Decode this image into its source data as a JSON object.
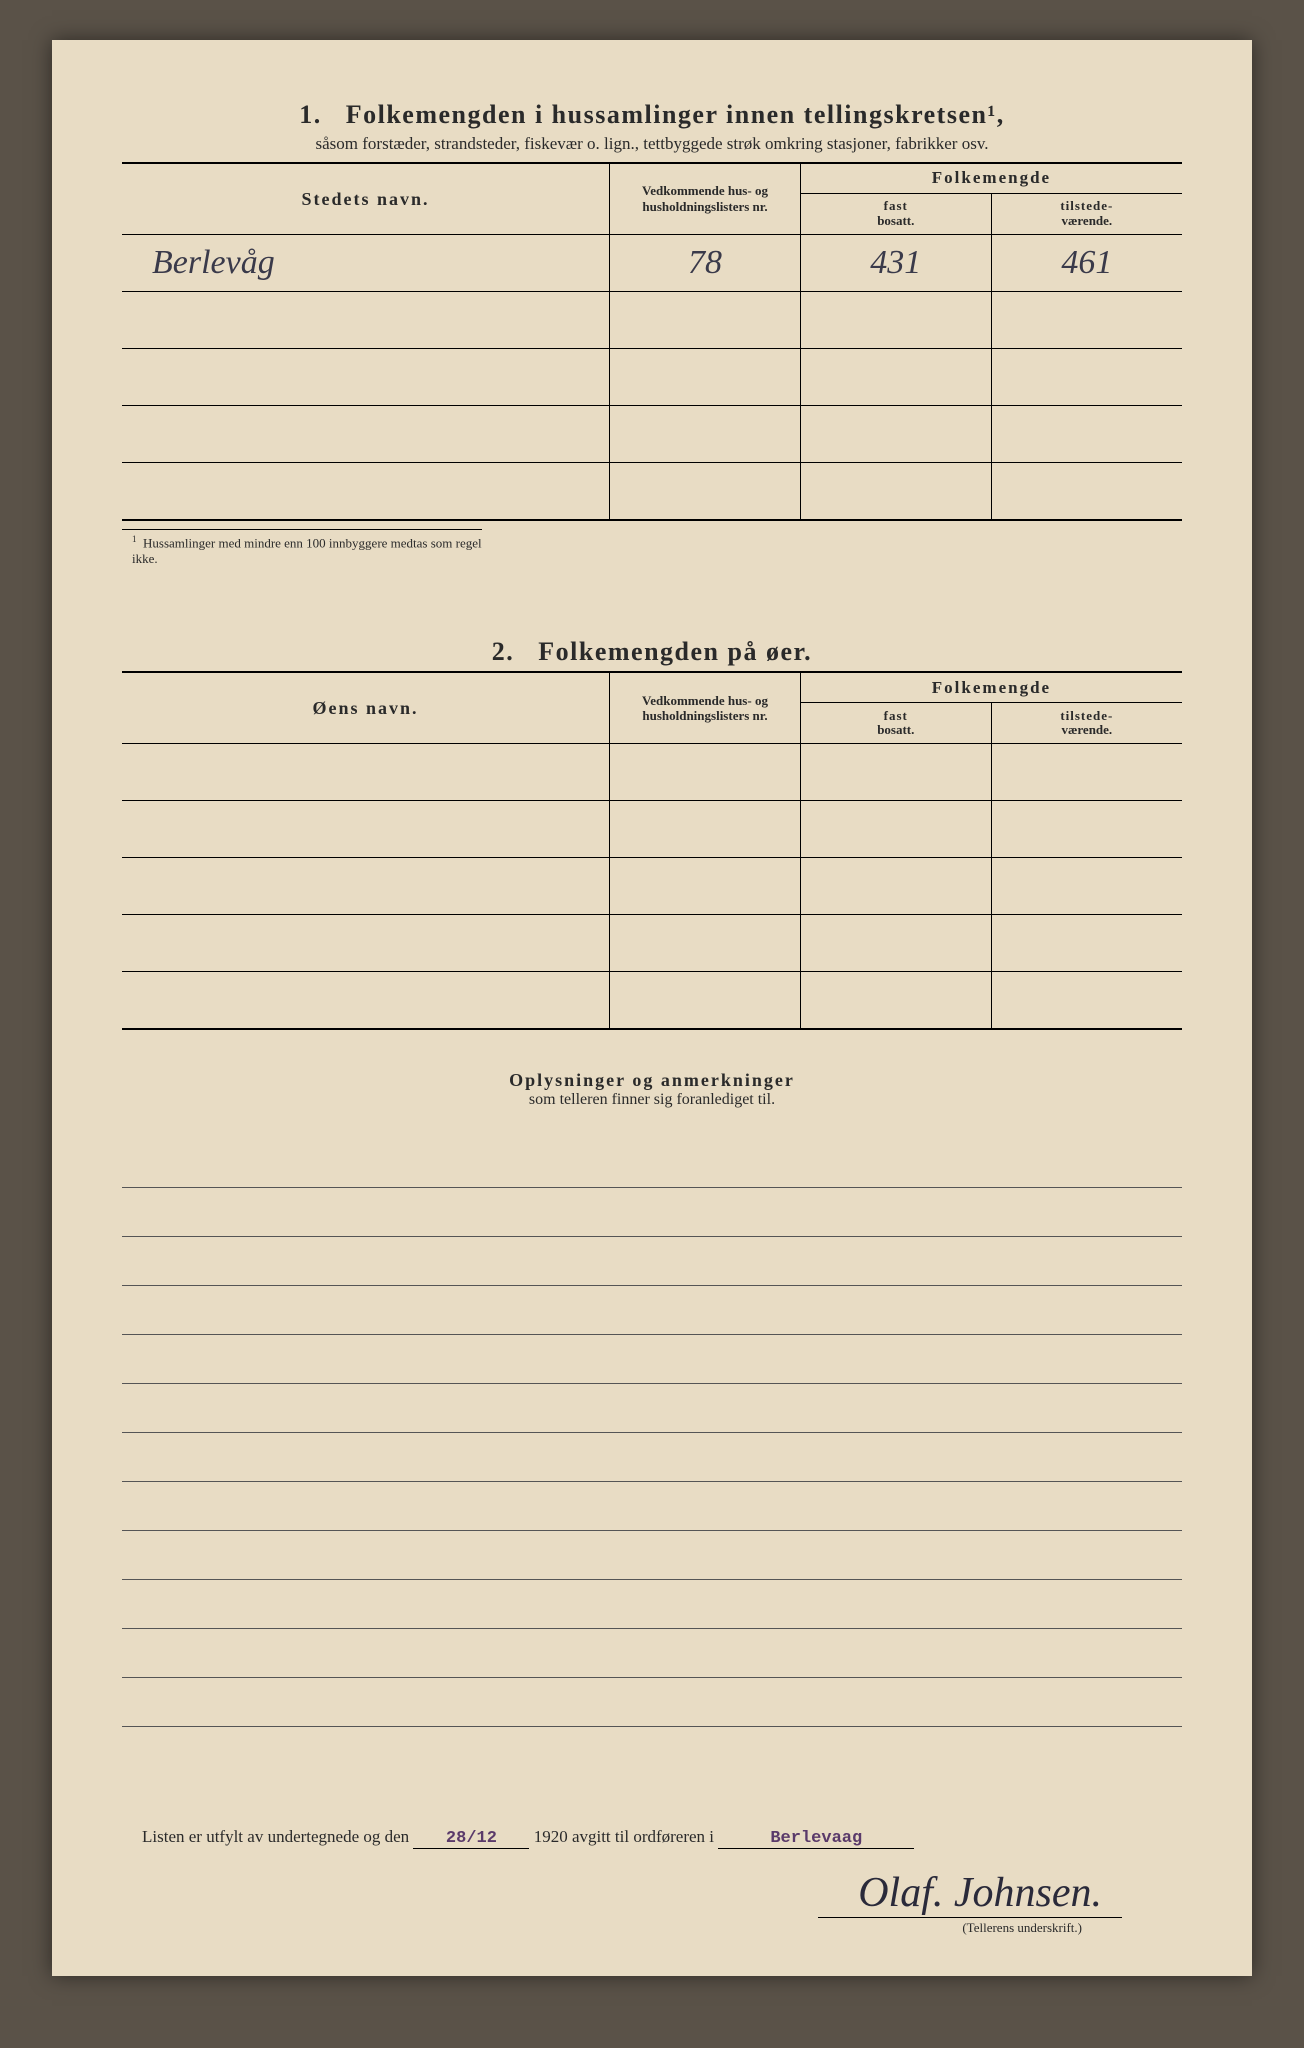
{
  "section1": {
    "number": "1.",
    "title": "Folkemengden i hussamlinger innen tellingskretsen¹,",
    "subtitle": "såsom forstæder, strandsteder, fiskevær o. lign., tettbyggede strøk omkring stasjoner, fabrikker osv.",
    "col_name": "Stedets navn.",
    "col_lists": "Vedkommende hus- og husholdningslisters nr.",
    "col_group": "Folkemengde",
    "col_fast_1": "fast",
    "col_fast_2": "bosatt.",
    "col_til_1": "tilstede-",
    "col_til_2": "værende.",
    "rows": [
      {
        "name": "Berlevåg",
        "nr": "78",
        "fast": "431",
        "til": "461"
      },
      {
        "name": "",
        "nr": "",
        "fast": "",
        "til": ""
      },
      {
        "name": "",
        "nr": "",
        "fast": "",
        "til": ""
      },
      {
        "name": "",
        "nr": "",
        "fast": "",
        "til": ""
      },
      {
        "name": "",
        "nr": "",
        "fast": "",
        "til": ""
      }
    ],
    "foot_sup": "1",
    "footnote": "Hussamlinger med mindre enn 100 innbyggere medtas som regel ikke."
  },
  "section2": {
    "number": "2.",
    "title": "Folkemengden på øer.",
    "col_name": "Øens navn.",
    "col_lists": "Vedkommende hus- og husholdningslisters nr.",
    "col_group": "Folkemengde",
    "col_fast_1": "fast",
    "col_fast_2": "bosatt.",
    "col_til_1": "tilstede-",
    "col_til_2": "værende.",
    "rows": [
      {
        "name": "",
        "nr": "",
        "fast": "",
        "til": ""
      },
      {
        "name": "",
        "nr": "",
        "fast": "",
        "til": ""
      },
      {
        "name": "",
        "nr": "",
        "fast": "",
        "til": ""
      },
      {
        "name": "",
        "nr": "",
        "fast": "",
        "til": ""
      },
      {
        "name": "",
        "nr": "",
        "fast": "",
        "til": ""
      }
    ]
  },
  "remarks": {
    "title": "Oplysninger og anmerkninger",
    "subtitle": "som telleren finner sig foranlediget til.",
    "line_count": 12
  },
  "footer": {
    "prefix": "Listen er utfylt av undertegnede og den",
    "date": "28/12",
    "year": "1920",
    "mid": "avgitt til ordføreren i",
    "place": "Berlevaag",
    "signature": "Olaf. Johnsen.",
    "sig_label": "(Tellerens underskrift.)"
  },
  "colors": {
    "paper": "#e8dcc4",
    "ink": "#2a2a2a",
    "pencil": "#3a3a4a",
    "stamp": "#5a3a6a",
    "background": "#5a5248"
  }
}
